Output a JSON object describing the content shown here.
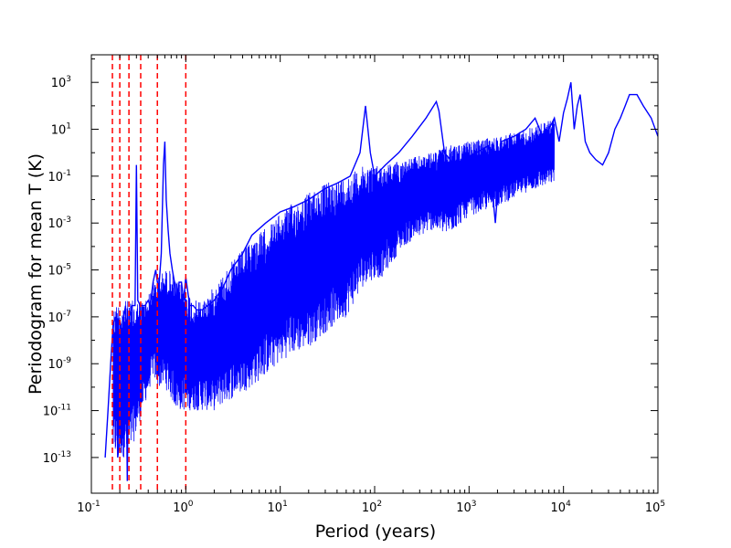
{
  "chart_data": {
    "type": "line",
    "title": "",
    "xlabel": "Period (years)",
    "ylabel": "Periodogram for mean T (K)",
    "x_scale": "log",
    "y_scale": "log",
    "xlim": [
      0.1,
      100000
    ],
    "ylim": [
      3e-15,
      15000
    ],
    "grid": false,
    "legend": "none",
    "x_ticks": [
      {
        "base": "10",
        "exp": "-1",
        "value": 0.1
      },
      {
        "base": "10",
        "exp": "0",
        "value": 1
      },
      {
        "base": "10",
        "exp": "1",
        "value": 10
      },
      {
        "base": "10",
        "exp": "2",
        "value": 100
      },
      {
        "base": "10",
        "exp": "3",
        "value": 1000
      },
      {
        "base": "10",
        "exp": "4",
        "value": 10000
      },
      {
        "base": "10",
        "exp": "5",
        "value": 100000
      }
    ],
    "y_ticks": [
      {
        "base": "10",
        "exp": "-13",
        "value": 1e-13
      },
      {
        "base": "10",
        "exp": "-11",
        "value": 1e-11
      },
      {
        "base": "10",
        "exp": "-9",
        "value": 1e-09
      },
      {
        "base": "10",
        "exp": "-7",
        "value": 1e-07
      },
      {
        "base": "10",
        "exp": "-5",
        "value": 1e-05
      },
      {
        "base": "10",
        "exp": "-3",
        "value": 0.001
      },
      {
        "base": "10",
        "exp": "-1",
        "value": 0.1
      },
      {
        "base": "10",
        "exp": "1",
        "value": 10
      },
      {
        "base": "10",
        "exp": "3",
        "value": 1000
      }
    ],
    "series": [
      {
        "color": "#0000ff",
        "style": "solid",
        "x": [
          0.14,
          0.15,
          0.16,
          0.17,
          0.18,
          0.19,
          0.2,
          0.21,
          0.22,
          0.23,
          0.24,
          0.25,
          0.27,
          0.29,
          0.3,
          0.31,
          0.33,
          0.35,
          0.37,
          0.4,
          0.42,
          0.45,
          0.48,
          0.5,
          0.52,
          0.55,
          0.58,
          0.6,
          0.62,
          0.65,
          0.68,
          0.72,
          0.76,
          0.8,
          0.85,
          0.9,
          0.95,
          1.0,
          1.1,
          1.2,
          1.3,
          1.5,
          1.7,
          2.0,
          2.5,
          3.0,
          4.0,
          5.0,
          7.0,
          10,
          14,
          20,
          30,
          40,
          55,
          70,
          80,
          90,
          100,
          130,
          180,
          250,
          350,
          450,
          480,
          550,
          700,
          900,
          1200,
          1600,
          1900,
          2200,
          3000,
          4000,
          5000,
          6000,
          7000,
          8000,
          9000,
          10000,
          11000,
          12000,
          13000,
          14000,
          15000,
          17000,
          19000,
          22000,
          26000,
          30000,
          35000,
          40000,
          45000,
          50000,
          60000,
          70000,
          85000,
          100000
        ],
        "y": [
          1e-13,
          1e-11,
          1e-09,
          5e-08,
          1e-07,
          1e-13,
          5e-13,
          2e-09,
          1e-07,
          3e-07,
          1e-14,
          1e-07,
          3e-07,
          3e-07,
          0.3,
          5e-07,
          3e-07,
          3e-07,
          3e-07,
          5e-07,
          3e-07,
          3e-06,
          1e-05,
          3e-06,
          2e-06,
          5e-05,
          0.3,
          3,
          0.01,
          0.0005,
          5e-05,
          1e-05,
          3e-06,
          3e-07,
          3e-06,
          3e-06,
          5e-07,
          5e-06,
          3e-07,
          3e-07,
          2e-07,
          2e-07,
          3e-07,
          5e-07,
          2e-06,
          1e-05,
          5e-05,
          0.0003,
          0.001,
          0.003,
          0.005,
          0.01,
          0.03,
          0.05,
          0.1,
          1,
          100,
          1,
          0.1,
          0.3,
          1,
          5,
          30,
          150,
          60,
          1,
          0.3,
          0.5,
          1,
          2,
          0.001,
          3,
          5,
          10,
          30,
          5,
          10,
          30,
          3,
          50,
          200,
          1000,
          10,
          100,
          300,
          3,
          1,
          0.5,
          0.3,
          1,
          10,
          30,
          100,
          300,
          300,
          100,
          30,
          5
        ]
      },
      {
        "color": "#0000ff",
        "style": "noise-band",
        "x": [
          0.17,
          0.2,
          0.25,
          0.3,
          0.35,
          0.4,
          0.45,
          0.5,
          0.6,
          0.7,
          0.8,
          0.9,
          1.0,
          1.2,
          1.5,
          2.0,
          3.0,
          5.0,
          8.0,
          12,
          20,
          30,
          50,
          80,
          120,
          200,
          400,
          600,
          1000,
          2000,
          4000,
          8000
        ],
        "y_low": [
          1e-13,
          1e-13,
          1e-13,
          1e-12,
          1e-11,
          5e-11,
          3e-10,
          1e-10,
          1e-10,
          3e-11,
          1e-11,
          1e-11,
          1e-11,
          1e-11,
          1e-11,
          1e-11,
          3e-11,
          1e-10,
          5e-10,
          2e-09,
          5e-09,
          2e-08,
          1e-07,
          3e-06,
          5e-06,
          0.0001,
          0.0005,
          0.0003,
          0.002,
          0.005,
          0.02,
          0.05
        ],
        "y_high": [
          3e-07,
          5e-07,
          5e-07,
          5e-07,
          5e-07,
          8e-07,
          3e-06,
          5e-06,
          1e-05,
          1e-05,
          3e-06,
          3e-06,
          2e-06,
          5e-07,
          5e-07,
          2e-06,
          2e-05,
          0.0002,
          0.001,
          0.005,
          0.02,
          0.05,
          0.1,
          0.3,
          0.3,
          0.5,
          1,
          2,
          3,
          5,
          10,
          30
        ]
      }
    ],
    "vlines": {
      "color": "#ff0000",
      "style": "dashed",
      "x": [
        0.167,
        0.2,
        0.25,
        0.333,
        0.5,
        1.0
      ]
    }
  }
}
